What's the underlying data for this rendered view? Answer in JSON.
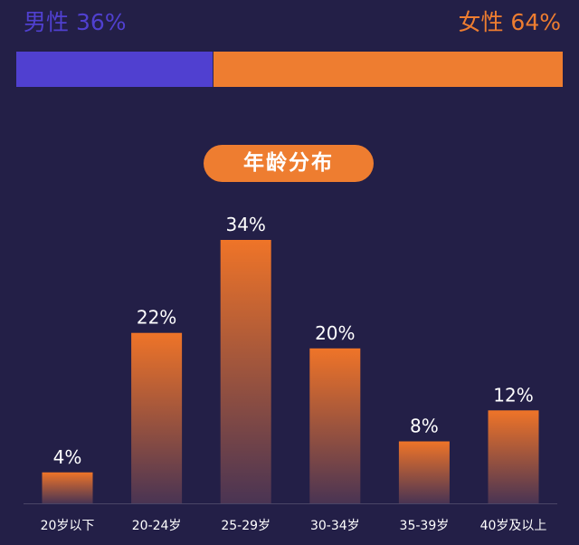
{
  "gender": {
    "male_label": "男性 36%",
    "female_label": "女性 64%",
    "male_value": 36,
    "female_value": 64,
    "male_color": "#5040d0",
    "female_color": "#ee7d30"
  },
  "colors": {
    "background": "#231f47",
    "accent": "#ee7d30",
    "bar_top": "#ef7428",
    "bar_bottom": "#4a3453",
    "text": "#ffffff",
    "axis": "#4a4566"
  },
  "chart_data": {
    "type": "bar",
    "title": "年龄分布",
    "categories": [
      "20岁以下",
      "20-24岁",
      "25-29岁",
      "30-34岁",
      "35-39岁",
      "40岁及以上"
    ],
    "values": [
      4,
      22,
      34,
      20,
      8,
      12
    ],
    "value_labels": [
      "4%",
      "22%",
      "34%",
      "20%",
      "8%",
      "12%"
    ],
    "ylim": [
      0,
      34
    ],
    "grid": false
  }
}
